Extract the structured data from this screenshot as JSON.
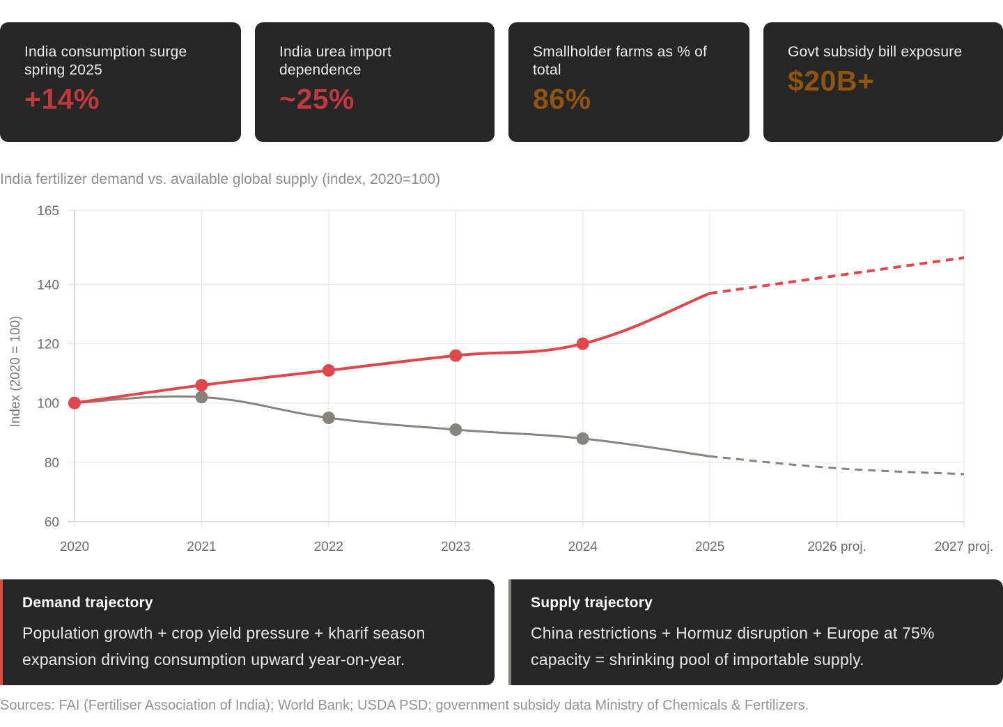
{
  "stats": [
    {
      "label": "India consumption surge spring 2025",
      "value": "+14%",
      "color": "#c0393e"
    },
    {
      "label": "India urea import dependence",
      "value": "~25%",
      "color": "#c0393e"
    },
    {
      "label": "Smallholder farms as % of total",
      "value": "86%",
      "color": "#8f5412"
    },
    {
      "label": "Govt subsidy bill exposure",
      "value": "$20B+",
      "color": "#8f5412"
    }
  ],
  "chart_caption": "India fertilizer demand vs. available global supply (index, 2020=100)",
  "chart_data": {
    "type": "line",
    "title": "India fertilizer demand vs. available global supply (index, 2020=100)",
    "categories": [
      "2020",
      "2021",
      "2022",
      "2023",
      "2024",
      "2025",
      "2026 proj.",
      "2027 proj."
    ],
    "ylabel": "Index (2020 = 100)",
    "xlabel": "",
    "yticks": [
      60,
      80,
      100,
      120,
      140,
      165
    ],
    "ylim": [
      60,
      165
    ],
    "grid": true,
    "projected_from_index": 5,
    "series": [
      {
        "name": "Demand",
        "color": "#e0474c",
        "values": [
          100,
          106,
          111,
          116,
          120,
          137,
          143,
          149
        ],
        "markers": [
          true,
          true,
          true,
          true,
          true,
          false,
          false,
          false
        ]
      },
      {
        "name": "Supply",
        "color": "#86847f",
        "values": [
          100,
          102,
          95,
          91,
          88,
          82,
          78,
          76
        ],
        "markers": [
          false,
          true,
          true,
          true,
          true,
          false,
          false,
          false
        ]
      }
    ]
  },
  "notes": [
    {
      "title": "Demand trajectory",
      "body": "Population growth + crop yield pressure + kharif season expansion driving consumption upward year-on-year.",
      "accent": "#e0474c"
    },
    {
      "title": "Supply trajectory",
      "body": "China restrictions + Hormuz disruption + Europe at 75% capacity = shrinking pool of importable supply.",
      "accent": "#86847f"
    }
  ],
  "source": "Sources: FAI (Fertiliser Association of India); World Bank; USDA PSD; government subsidy data Ministry of Chemicals & Fertilizers."
}
